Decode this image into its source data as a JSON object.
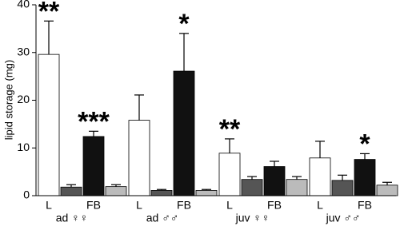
{
  "chart_data": {
    "type": "bar",
    "y_label": "lipid storage (mg)",
    "categories": [
      "ad ♀♀",
      "ad ♂♂",
      "juv ♀♀",
      "juv ♂♂"
    ],
    "bar_labels": [
      "L",
      null,
      "FB",
      null
    ],
    "series": [
      {
        "color": "#ffffff",
        "values": [
          29.6,
          15.8,
          8.9,
          7.9
        ],
        "errors": [
          7.0,
          5.3,
          3.0,
          3.5
        ],
        "stars": [
          "**",
          null,
          "**",
          null
        ]
      },
      {
        "color": "#555555",
        "values": [
          1.8,
          1.1,
          3.4,
          3.2
        ],
        "errors": [
          0.5,
          0.2,
          0.6,
          1.1
        ],
        "stars": [
          null,
          null,
          null,
          null
        ]
      },
      {
        "color": "#111111",
        "values": [
          12.4,
          26.1,
          6.1,
          7.6
        ],
        "errors": [
          1.1,
          7.9,
          1.1,
          1.2
        ],
        "stars": [
          "***",
          "*",
          null,
          "*"
        ]
      },
      {
        "color": "#bbbbbb",
        "values": [
          1.9,
          1.1,
          3.4,
          2.2
        ],
        "errors": [
          0.4,
          0.2,
          0.6,
          0.6
        ],
        "stars": [
          null,
          null,
          null,
          null
        ]
      }
    ],
    "ylim": [
      0,
      40
    ],
    "yticks": [
      0,
      10,
      20,
      30,
      40
    ]
  }
}
